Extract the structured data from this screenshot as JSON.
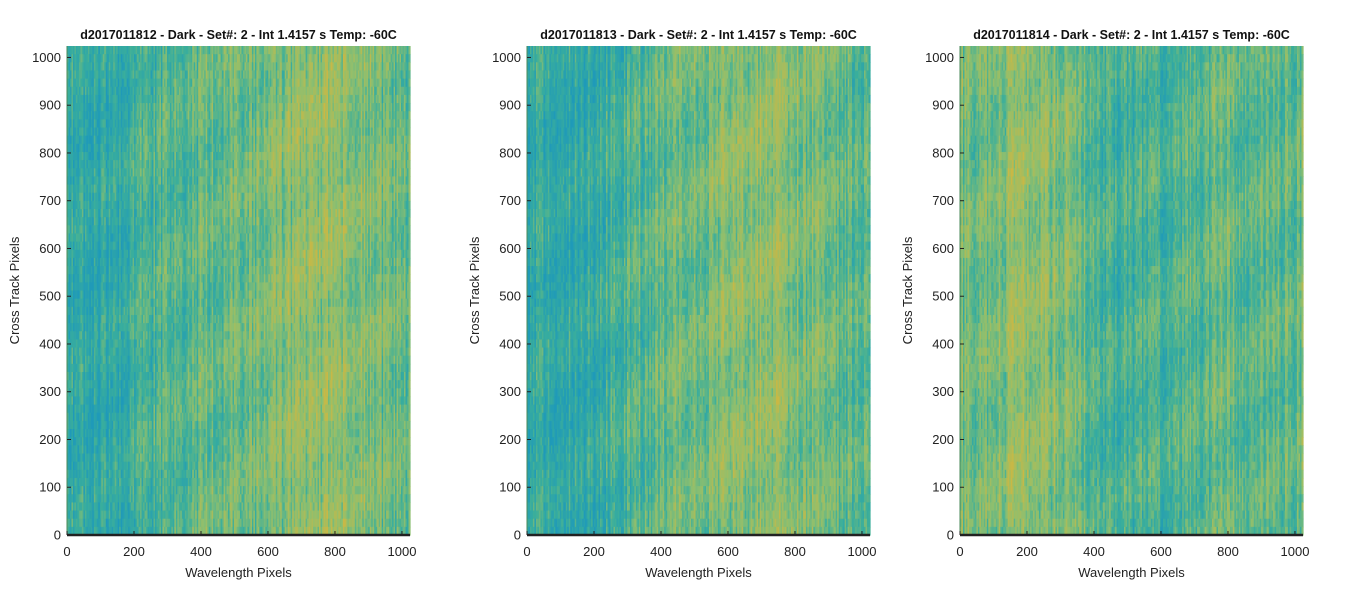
{
  "chart_data": [
    {
      "type": "heatmap",
      "title": "d2017011812 - Dark - Set#: 2 - Int 1.4157 s Temp: -60C",
      "xlabel": "Wavelength Pixels",
      "ylabel": "Cross Track Pixels",
      "xlim": [
        0,
        1024
      ],
      "ylim": [
        0,
        1024
      ],
      "xticks": [
        "0",
        "200",
        "400",
        "600",
        "800",
        "1000"
      ],
      "yticks": [
        "0",
        "100",
        "200",
        "300",
        "400",
        "500",
        "600",
        "700",
        "800",
        "900",
        "1000"
      ],
      "colormap": [
        "#1f9ab9",
        "#3aae9c",
        "#8fbf6e",
        "#c9b845"
      ],
      "column_profile": {
        "x": [
          0,
          100,
          200,
          300,
          400,
          500,
          600,
          700,
          800,
          900,
          1024
        ],
        "level": [
          0.25,
          0.2,
          0.32,
          0.42,
          0.5,
          0.55,
          0.6,
          0.66,
          0.72,
          0.6,
          0.48
        ]
      },
      "grid": false
    },
    {
      "type": "heatmap",
      "title": "d2017011813 - Dark - Set#: 2 - Int 1.4157 s Temp: -60C",
      "xlabel": "Wavelength Pixels",
      "ylabel": "Cross Track Pixels",
      "xlim": [
        0,
        1024
      ],
      "ylim": [
        0,
        1024
      ],
      "xticks": [
        "0",
        "200",
        "400",
        "600",
        "800",
        "1000"
      ],
      "yticks": [
        "0",
        "100",
        "200",
        "300",
        "400",
        "500",
        "600",
        "700",
        "800",
        "900",
        "1000"
      ],
      "colormap": [
        "#1f9ab9",
        "#3aae9c",
        "#8fbf6e",
        "#c9b845"
      ],
      "column_profile": {
        "x": [
          0,
          100,
          200,
          300,
          400,
          500,
          600,
          700,
          800,
          900,
          1024
        ],
        "level": [
          0.22,
          0.2,
          0.28,
          0.4,
          0.5,
          0.55,
          0.62,
          0.7,
          0.64,
          0.5,
          0.42
        ]
      },
      "grid": false
    },
    {
      "type": "heatmap",
      "title": "d2017011814 - Dark - Set#: 2 - Int 1.4157 s Temp: -60C",
      "xlabel": "Wavelength Pixels",
      "ylabel": "Cross Track Pixels",
      "xlim": [
        0,
        1024
      ],
      "ylim": [
        0,
        1024
      ],
      "xticks": [
        "0",
        "200",
        "400",
        "600",
        "800",
        "1000"
      ],
      "yticks": [
        "0",
        "100",
        "200",
        "300",
        "400",
        "500",
        "600",
        "700",
        "800",
        "900",
        "1000"
      ],
      "colormap": [
        "#1f9ab9",
        "#3aae9c",
        "#8fbf6e",
        "#c9b845"
      ],
      "column_profile": {
        "x": [
          0,
          100,
          200,
          300,
          400,
          500,
          600,
          700,
          800,
          900,
          1024
        ],
        "level": [
          0.55,
          0.6,
          0.68,
          0.62,
          0.45,
          0.35,
          0.4,
          0.45,
          0.5,
          0.48,
          0.52
        ]
      },
      "grid": false
    }
  ]
}
